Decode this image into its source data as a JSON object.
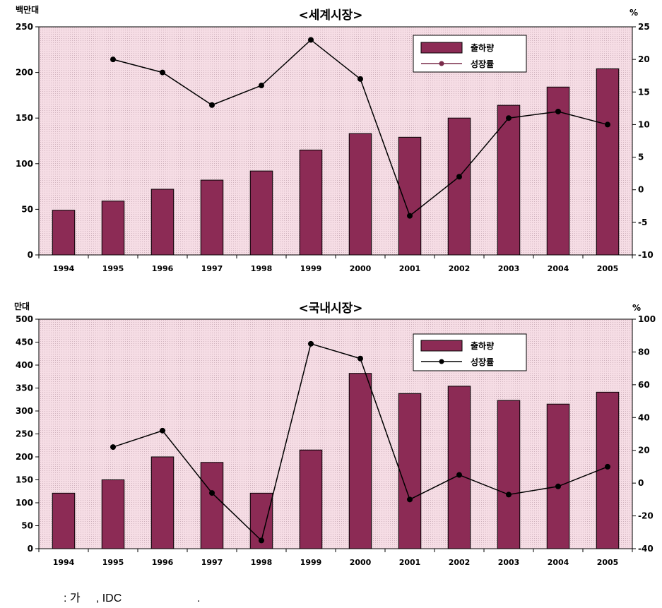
{
  "colors": {
    "bar": "#8c2b55",
    "plot_bg": "#f6dde5",
    "axis": "#000000",
    "line": "#000000"
  },
  "source_note": ": 가     , IDC                        .",
  "chart_data": [
    {
      "type": "bar",
      "title": "<세계시장>",
      "left_unit": "백만대",
      "right_unit": "%",
      "categories": [
        "1994",
        "1995",
        "1996",
        "1997",
        "1998",
        "1999",
        "2000",
        "2001",
        "2002",
        "2003",
        "2004",
        "2005"
      ],
      "series": [
        {
          "name": "출하량",
          "type": "bar",
          "axis": "left",
          "values": [
            49,
            59,
            72,
            82,
            92,
            115,
            133,
            129,
            150,
            164,
            184,
            204
          ]
        },
        {
          "name": "성장률",
          "type": "line",
          "axis": "right",
          "values": [
            null,
            20,
            18,
            13,
            16,
            23,
            17,
            -4,
            2,
            11,
            12,
            10
          ]
        }
      ],
      "ylim_left": [
        0,
        250
      ],
      "yticks_left": [
        0,
        50,
        100,
        150,
        200,
        250
      ],
      "ylim_right": [
        -10,
        25
      ],
      "yticks_right": [
        -10,
        -5,
        0,
        5,
        10,
        15,
        20,
        25
      ],
      "legend": "top-right"
    },
    {
      "type": "bar",
      "title": "<국내시장>",
      "left_unit": "만대",
      "right_unit": "%",
      "categories": [
        "1994",
        "1995",
        "1996",
        "1997",
        "1998",
        "1999",
        "2000",
        "2001",
        "2002",
        "2003",
        "2004",
        "2005"
      ],
      "series": [
        {
          "name": "출하량",
          "type": "bar",
          "axis": "left",
          "values": [
            121,
            150,
            200,
            188,
            121,
            215,
            382,
            338,
            354,
            323,
            315,
            341
          ]
        },
        {
          "name": "성장률",
          "type": "line",
          "axis": "right",
          "values": [
            null,
            22,
            32,
            -6,
            -35,
            85,
            76,
            -10,
            5,
            -7,
            -2,
            10
          ]
        }
      ],
      "ylim_left": [
        0,
        500
      ],
      "yticks_left": [
        0,
        50,
        100,
        150,
        200,
        250,
        300,
        350,
        400,
        450,
        500
      ],
      "ylim_right": [
        -40,
        100
      ],
      "yticks_right": [
        -40,
        -20,
        0,
        20,
        40,
        60,
        80,
        100
      ],
      "legend": "top-right"
    }
  ]
}
